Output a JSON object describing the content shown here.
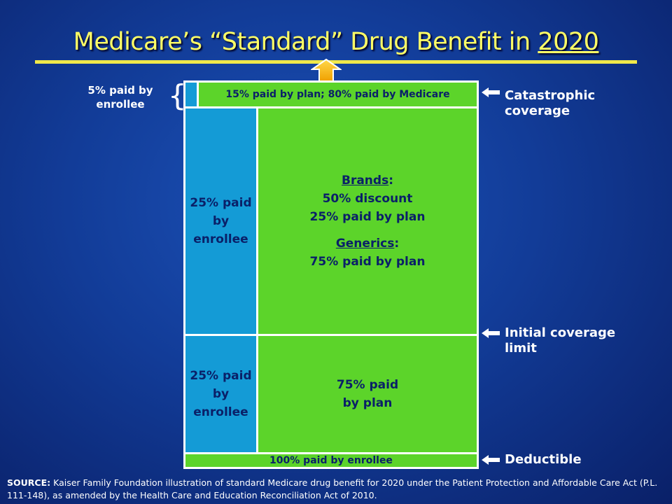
{
  "title": {
    "prefix": "Medicare’s “Standard” Drug Benefit in ",
    "year": "2020"
  },
  "catastrophic": {
    "enrollee_label": "5% paid by enrollee",
    "plan_label": "15% paid by plan; 80% paid by Medicare"
  },
  "coverage_gap": {
    "enrollee_label": "25% paid by enrollee",
    "brands_heading": "Brands",
    "brands_line1": "50% discount",
    "brands_line2": "25% paid by plan",
    "generics_heading": "Generics",
    "generics_line1": "75% paid by plan"
  },
  "initial_coverage": {
    "enrollee_label": "25% paid by enrollee",
    "plan_label": "75% paid by plan"
  },
  "deductible": {
    "label": "100% paid by enrollee"
  },
  "side_labels": {
    "catastrophic": "Catastrophic coverage",
    "initial_coverage_limit": "Initial coverage limit",
    "deductible": "Deductible"
  },
  "source": {
    "prefix": "SOURCE:",
    "text": "Kaiser Family Foundation illustration of standard Medicare drug benefit for 2020 under the Patient Protection and Affordable Care Act (P.L. 111-148), as amended by the Health Care and Education Reconciliation Act of 2010."
  },
  "colors": {
    "green": "#5cd42a",
    "blue": "#149bd6",
    "title": "#ffff66",
    "arrow": "#f5b800"
  },
  "icons": {
    "up_arrow": "up-arrow-icon",
    "side_arrows": "left-arrow-icon",
    "brace": "curly-brace-icon"
  }
}
